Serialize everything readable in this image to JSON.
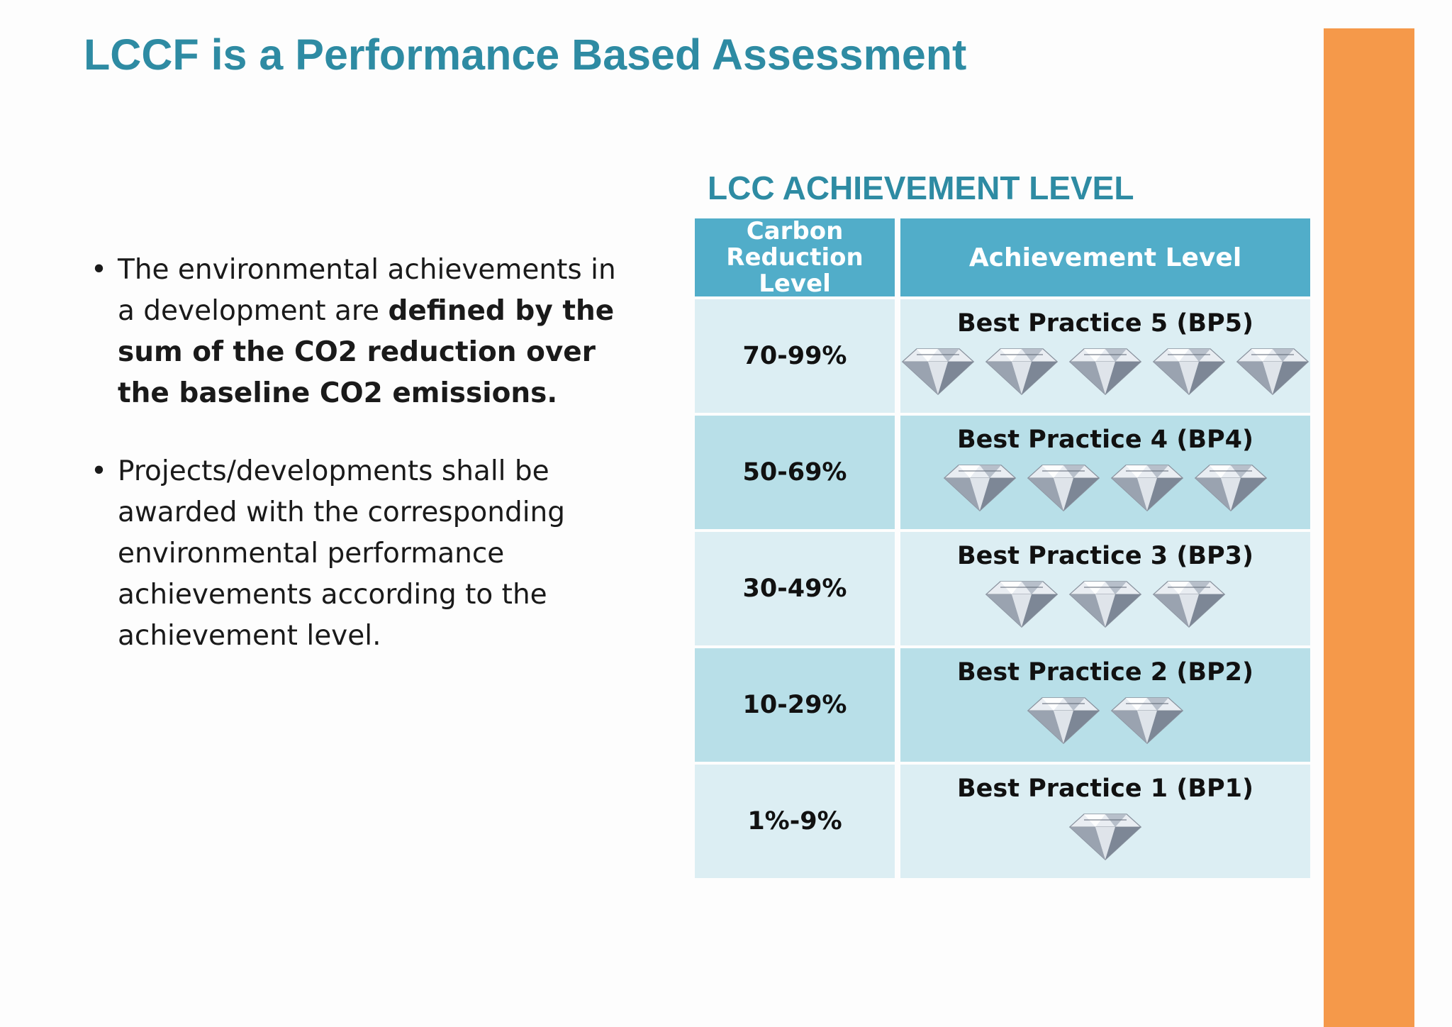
{
  "slide": {
    "title": "LCCF is a Performance Based Assessment",
    "accent_color": "#f5994a"
  },
  "bullets": [
    {
      "text_before": "The environmental achievements in a development are ",
      "text_bold": "defined by the sum of the CO2 reduction over the baseline CO2 emissions."
    },
    {
      "text": "Projects/developments shall be awarded with the corresponding environmental performance achievements according to the achievement level."
    }
  ],
  "table": {
    "heading": "LCC ACHIEVEMENT LEVEL",
    "columns": [
      "Carbon Reduction Level",
      "Achievement Level"
    ],
    "rows": [
      {
        "range": "70-99%",
        "achievement": "Best Practice 5 (BP5)",
        "diamonds": 5
      },
      {
        "range": "50-69%",
        "achievement": "Best Practice 4  (BP4)",
        "diamonds": 4
      },
      {
        "range": "30-49%",
        "achievement": "Best Practice 3 (BP3)",
        "diamonds": 3
      },
      {
        "range": "10-29%",
        "achievement": "Best Practice 2 (BP2)",
        "diamonds": 2
      },
      {
        "range": "1%-9%",
        "achievement": "Best Practice 1 (BP1)",
        "diamonds": 1
      }
    ],
    "header_color": "#51adc9",
    "row_colors": [
      "#dceef3",
      "#b8dfe8"
    ]
  }
}
